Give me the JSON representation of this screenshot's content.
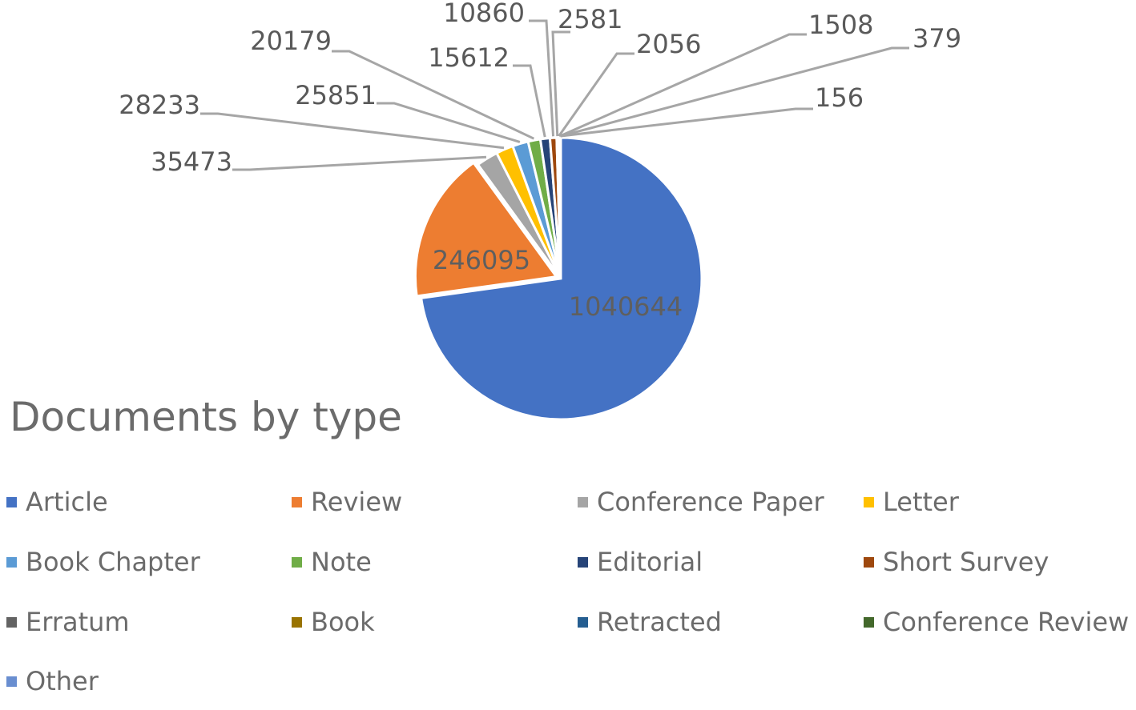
{
  "chart_data": {
    "type": "pie",
    "title": "Documents by type",
    "slices": [
      {
        "label": "Article",
        "value": 1040644,
        "color": "#4472C4"
      },
      {
        "label": "Review",
        "value": 246095,
        "color": "#ED7D31"
      },
      {
        "label": "Conference Paper",
        "value": 35473,
        "color": "#A5A5A5"
      },
      {
        "label": "Letter",
        "value": 28233,
        "color": "#FFC000"
      },
      {
        "label": "Book Chapter",
        "value": 25851,
        "color": "#5B9BD5"
      },
      {
        "label": "Note",
        "value": 20179,
        "color": "#70AD47"
      },
      {
        "label": "Editorial",
        "value": 15612,
        "color": "#264478"
      },
      {
        "label": "Short Survey",
        "value": 10860,
        "color": "#9E480E"
      },
      {
        "label": "Erratum",
        "value": 2581,
        "color": "#636363"
      },
      {
        "label": "Book",
        "value": 2056,
        "color": "#997300"
      },
      {
        "label": "Retracted",
        "value": 1508,
        "color": "#255E91"
      },
      {
        "label": "Conference Review",
        "value": 379,
        "color": "#43682B"
      },
      {
        "label": "Other",
        "value": 156,
        "color": "#698ED0"
      }
    ],
    "data_labels": [
      "1040644",
      "246095",
      "35473",
      "28233",
      "25851",
      "20179",
      "15612",
      "10860",
      "2581",
      "2056",
      "1508",
      "379",
      "156"
    ],
    "legend_position": "bottom",
    "legend_columns": 4
  }
}
